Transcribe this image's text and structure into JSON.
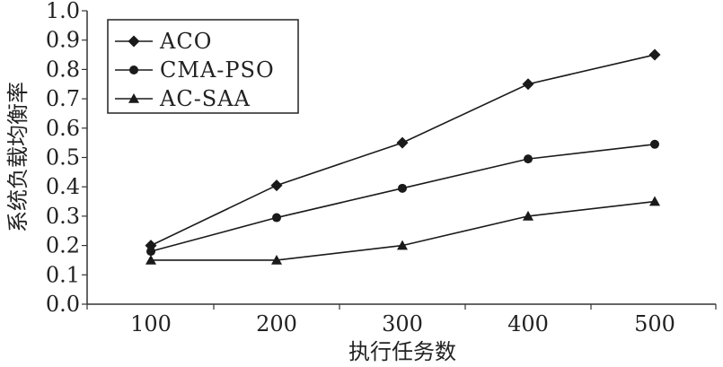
{
  "chart_data": {
    "type": "line",
    "title": "",
    "xlabel": "执行任务数",
    "ylabel": "系统负载均衡率",
    "x": [
      100,
      200,
      300,
      400,
      500
    ],
    "x_tick_labels": [
      "100",
      "200",
      "300",
      "400",
      "500"
    ],
    "ylim": [
      0.0,
      1.0
    ],
    "y_ticks": [
      0.0,
      0.1,
      0.2,
      0.3,
      0.4,
      0.5,
      0.6,
      0.7,
      0.8,
      0.9,
      1.0
    ],
    "y_tick_labels": [
      "0.0",
      "0.1",
      "0.2",
      "0.3",
      "0.4",
      "0.5",
      "0.6",
      "0.7",
      "0.8",
      "0.9",
      "1.0"
    ],
    "grid": false,
    "legend_position": "top-left",
    "series": [
      {
        "name": "ACO",
        "marker": "diamond",
        "values": [
          0.2,
          0.405,
          0.55,
          0.75,
          0.85
        ]
      },
      {
        "name": "CMA-PSO",
        "marker": "circle",
        "values": [
          0.18,
          0.295,
          0.395,
          0.495,
          0.545
        ]
      },
      {
        "name": "AC-SAA",
        "marker": "triangle",
        "values": [
          0.15,
          0.15,
          0.2,
          0.3,
          0.35
        ]
      }
    ],
    "colors": {
      "line": "#1a1a1a",
      "axis": "#333333"
    }
  }
}
